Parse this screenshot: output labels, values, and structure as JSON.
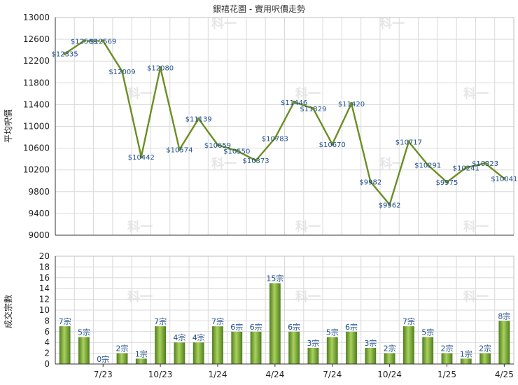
{
  "title": "銀禧花園 - 實用呎價走勢",
  "watermark": "科一",
  "colors": {
    "line": "#6b8e23",
    "bar_dark": "#4f7d1e",
    "bar_light": "#a9d15c",
    "label": "#1f4e8c",
    "grid": "#d9d9d9",
    "axis": "#333333"
  },
  "chart_data": [
    {
      "type": "line",
      "ylabel": "平均呎價",
      "ylim": [
        9000,
        13000
      ],
      "yticks": [
        9000,
        9400,
        9800,
        10200,
        10600,
        11000,
        11400,
        11800,
        12200,
        12600,
        13000
      ],
      "grid": true,
      "series": [
        {
          "values": [
            12335,
            12569,
            12569,
            12009,
            10442,
            12080,
            10574,
            11139,
            10659,
            10550,
            10373,
            10783,
            11446,
            11329,
            10670,
            11420,
            9982,
            9562,
            10717,
            10291,
            9975,
            10241,
            10323,
            10041
          ],
          "labels": [
            "$12335",
            "$12569",
            "$12569",
            "$12009",
            "$10442",
            "$12080",
            "$10574",
            "$11139",
            "$10659",
            "$10550",
            "$10373",
            "$10783",
            "$11446",
            "$11329",
            "$10670",
            "$11420",
            "$9982",
            "$9562",
            "$10717",
            "$10291",
            "$9975",
            "$10241",
            "$10323",
            "$10041"
          ],
          "dotted_segments": [
            1
          ]
        }
      ]
    },
    {
      "type": "bar",
      "ylabel": "成交宗數",
      "ylim": [
        0,
        20
      ],
      "yticks": [
        0,
        2,
        4,
        6,
        8,
        10,
        12,
        14,
        16,
        18,
        20
      ],
      "grid": true,
      "series": [
        {
          "values": [
            7,
            5,
            0,
            2,
            1,
            7,
            4,
            4,
            7,
            6,
            6,
            15,
            6,
            3,
            5,
            6,
            3,
            2,
            7,
            5,
            2,
            1,
            2,
            8
          ],
          "labels": [
            "7宗",
            "5宗",
            "0宗",
            "2宗",
            "1宗",
            "7宗",
            "4宗",
            "4宗",
            "7宗",
            "6宗",
            "6宗",
            "15宗",
            "6宗",
            "3宗",
            "5宗",
            "6宗",
            "3宗",
            "2宗",
            "7宗",
            "5宗",
            "2宗",
            "1宗",
            "2宗",
            "8宗"
          ]
        }
      ]
    }
  ],
  "x_ticks": [
    {
      "label": "7/23",
      "at": 2
    },
    {
      "label": "10/23",
      "at": 5
    },
    {
      "label": "1/24",
      "at": 8
    },
    {
      "label": "4/24",
      "at": 11
    },
    {
      "label": "7/24",
      "at": 14
    },
    {
      "label": "10/24",
      "at": 17
    },
    {
      "label": "1/25",
      "at": 20
    },
    {
      "label": "4/25",
      "at": 23
    }
  ]
}
